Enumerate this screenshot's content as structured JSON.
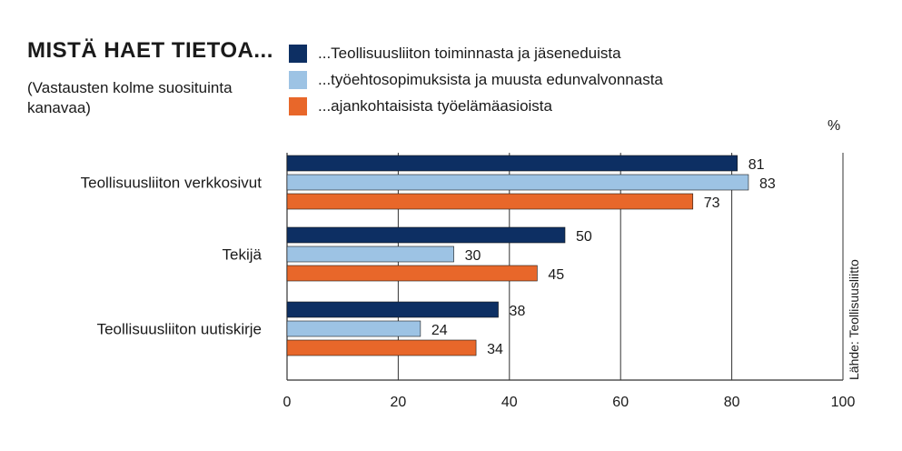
{
  "chart_data": {
    "type": "bar",
    "orientation": "horizontal",
    "title": "MISTÄ HAET TIETOA...",
    "subtitle": "(Vastausten kolme suosituinta kanavaa)",
    "unit": "%",
    "source": "Lähde: Teollisuusliitto",
    "categories": [
      "Teollisuusliiton verkkosivut",
      "Tekijä",
      "Teollisuusliiton uutiskirje"
    ],
    "series": [
      {
        "name": "...Teollisuusliiton toiminnasta ja jäseneduista",
        "color": "#0d2f63",
        "values": [
          81,
          50,
          38
        ]
      },
      {
        "name": "...työehtosopimuksista ja muusta edunvalvonnasta",
        "color": "#9dc3e4",
        "values": [
          83,
          30,
          24
        ]
      },
      {
        "name": "...ajankohtaisista työelämäasioista",
        "color": "#e8672a",
        "values": [
          73,
          45,
          34
        ]
      }
    ],
    "xlim": [
      0,
      100
    ],
    "xticks": [
      "0",
      "20",
      "40",
      "60",
      "80",
      "100"
    ],
    "grid": "vertical",
    "legend_position": "top"
  }
}
